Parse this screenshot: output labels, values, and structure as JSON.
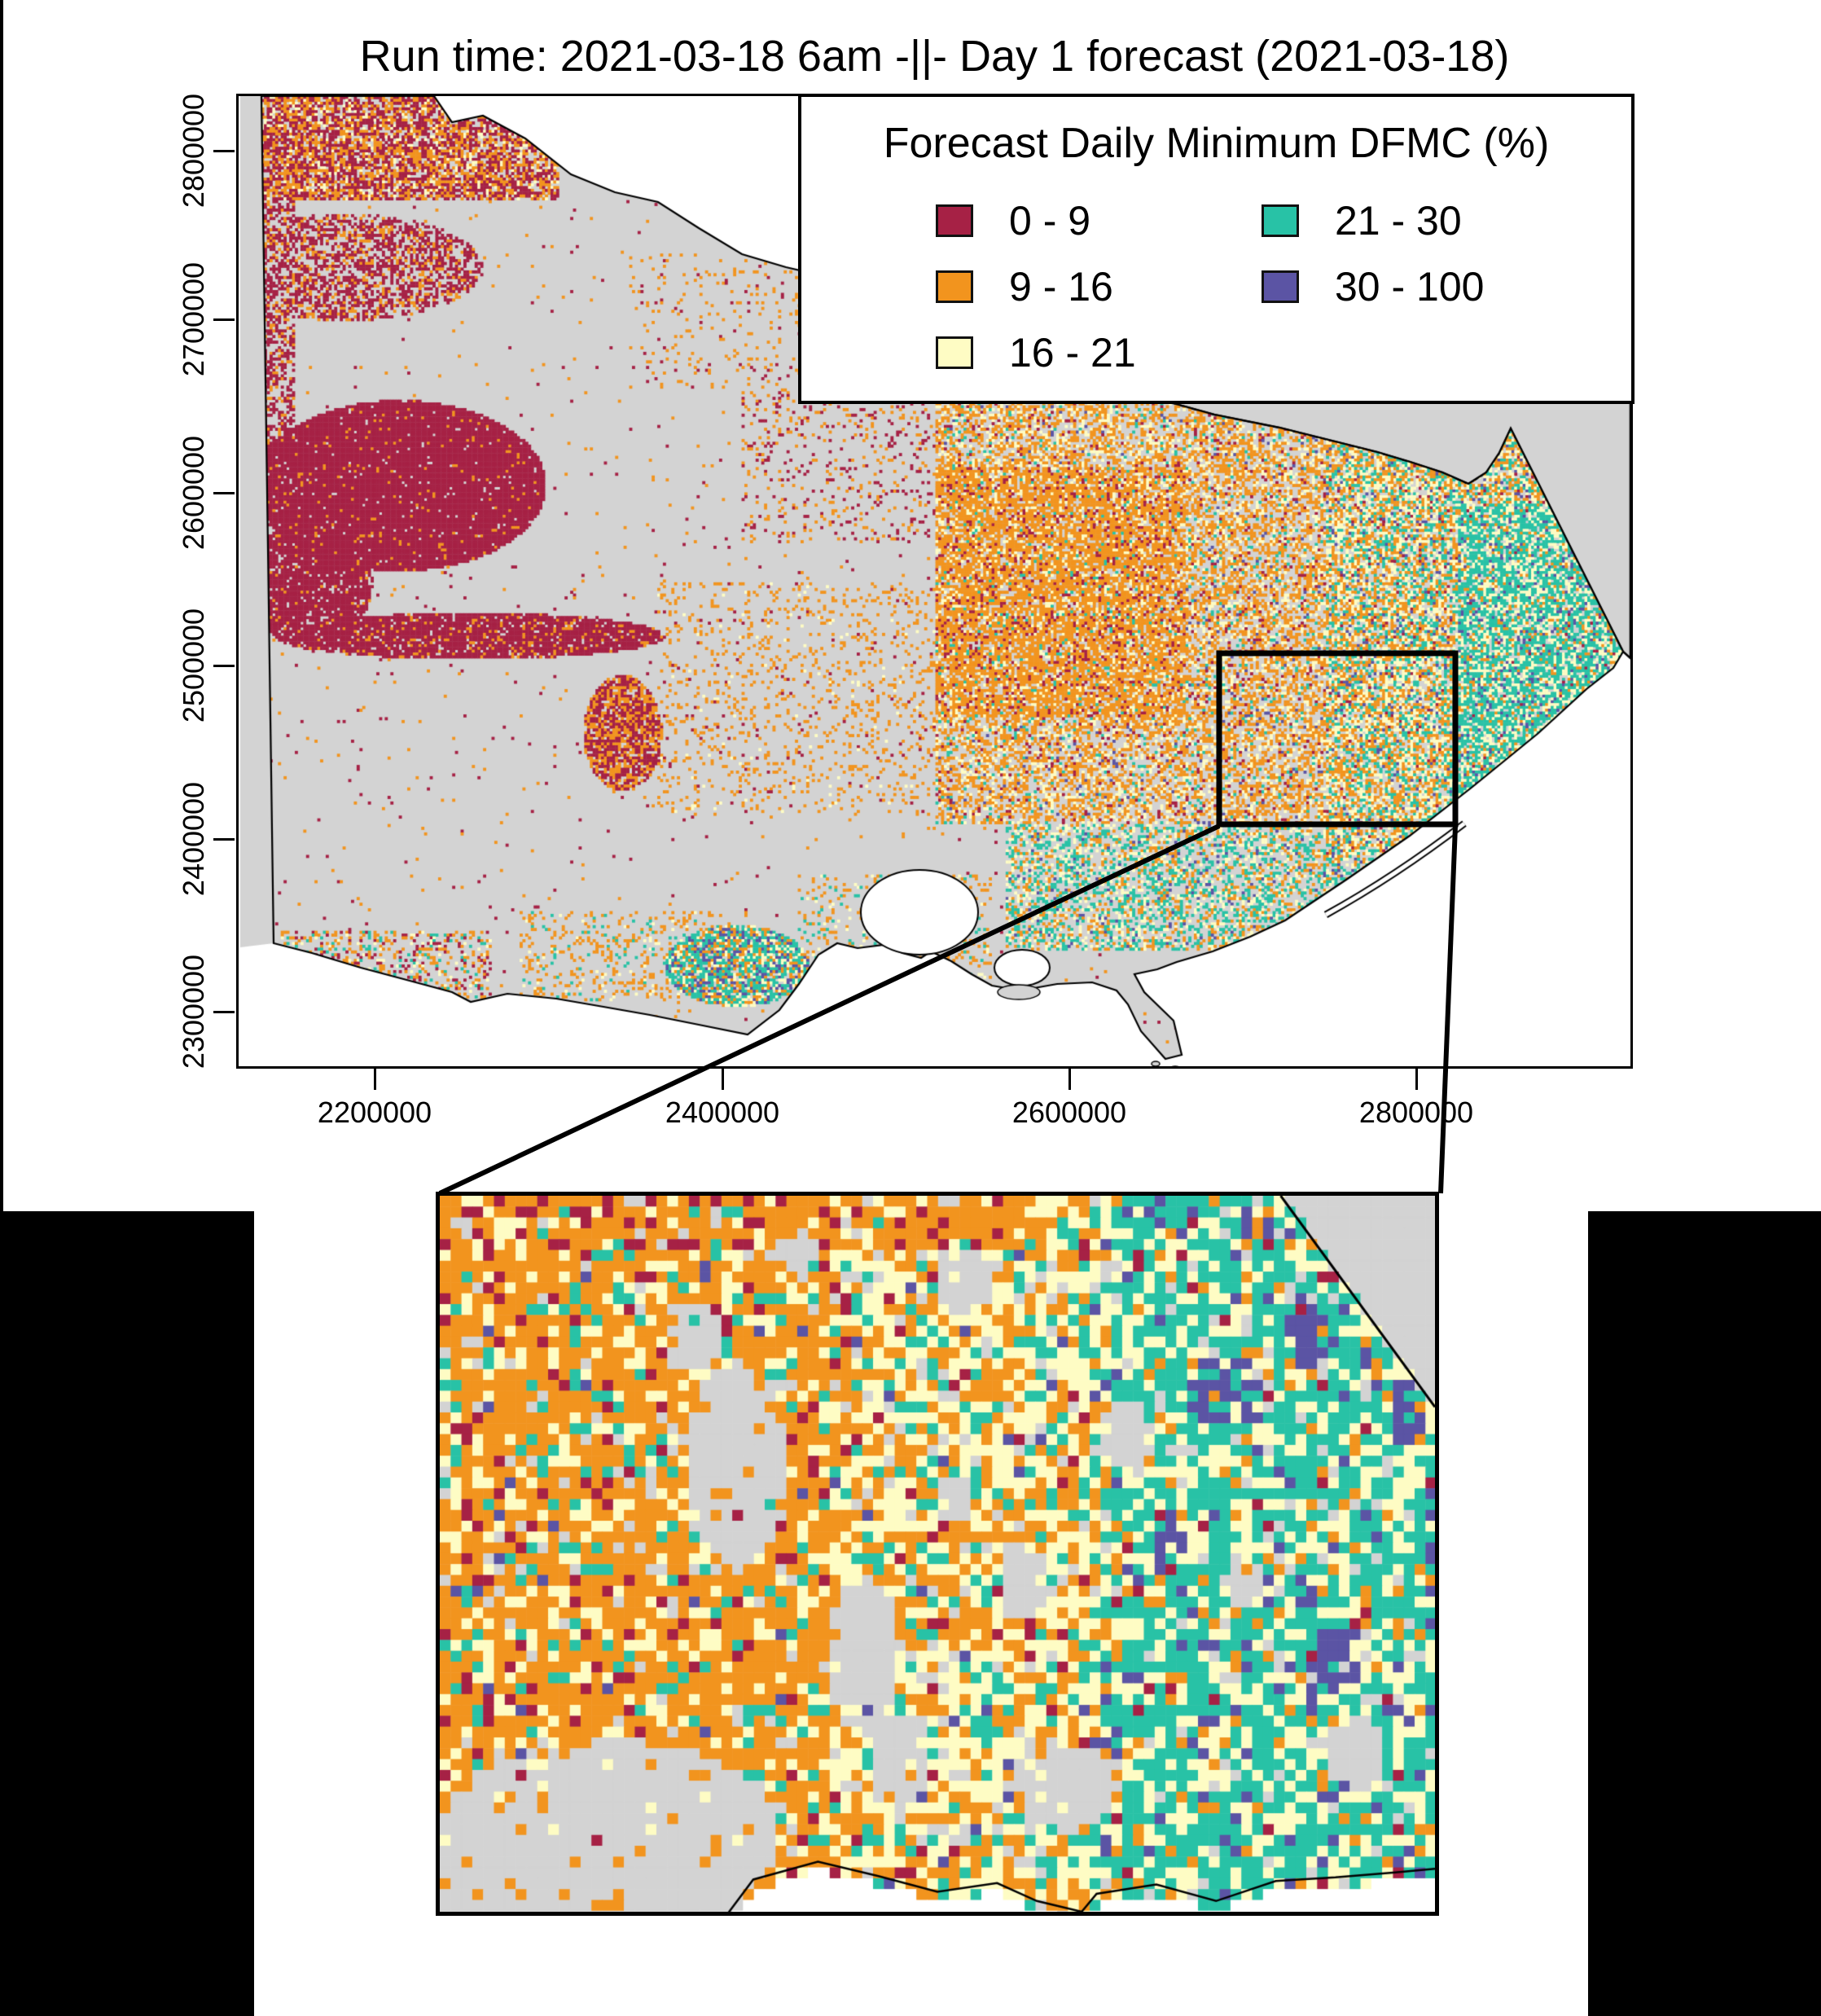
{
  "title": "Run time: 2021-03-18 6am -||- Day 1 forecast (2021-03-18)",
  "legend": {
    "title": "Forecast Daily Minimum DFMC (%)",
    "items": [
      {
        "label": "0 - 9",
        "color": "#A62145"
      },
      {
        "label": "9 - 16",
        "color": "#F2941E"
      },
      {
        "label": "16 - 21",
        "color": "#FEFCC4"
      },
      {
        "label": "21 - 30",
        "color": "#28C2A6"
      },
      {
        "label": "30 - 100",
        "color": "#5B54A4"
      }
    ]
  },
  "axes": {
    "x_ticks": [
      "2200000",
      "2400000",
      "2600000",
      "2800000"
    ],
    "y_ticks": [
      "2800000",
      "2700000",
      "2600000",
      "2500000",
      "2400000",
      "2300000"
    ]
  },
  "map": {
    "no_data_land_color": "#D3D3D3",
    "sea_color": "#FFFFFF",
    "outline_color": "#000000",
    "class_colors": {
      "crimson": "#A62145",
      "orange": "#F2941E",
      "yellow": "#FEFCC4",
      "teal": "#28C2A6",
      "purple": "#5B54A4",
      "gray": "#D3D3D3"
    }
  }
}
